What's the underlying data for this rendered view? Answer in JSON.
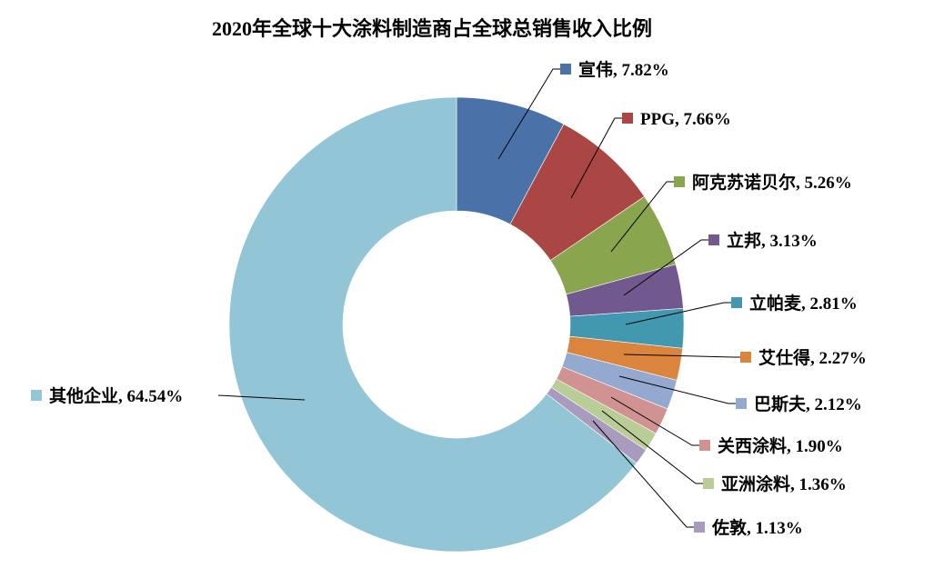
{
  "chart_data": {
    "type": "pie",
    "variant": "donut",
    "title": "2020年全球十大涂料制造商占全球总销售收入比例",
    "unit": "%",
    "start": "12 o'clock, clockwise",
    "categories": [
      "宣伟",
      "PPG",
      "阿克苏诺贝尔",
      "立邦",
      "立帕麦",
      "艾仕得",
      "巴斯夫",
      "关西涂料",
      "亚洲涂料",
      "佐敦",
      "其他企业"
    ],
    "values": [
      7.82,
      7.66,
      5.26,
      3.13,
      2.81,
      2.27,
      2.12,
      1.9,
      1.36,
      1.13,
      64.54
    ],
    "colors": [
      "#4A72A8",
      "#AA4643",
      "#89A54E",
      "#71588F",
      "#4198AF",
      "#DB843D",
      "#93A9CF",
      "#D19392",
      "#B9CD96",
      "#A99BBD",
      "#92C5D6"
    ],
    "legend": "none (data labels with leader lines)"
  }
}
